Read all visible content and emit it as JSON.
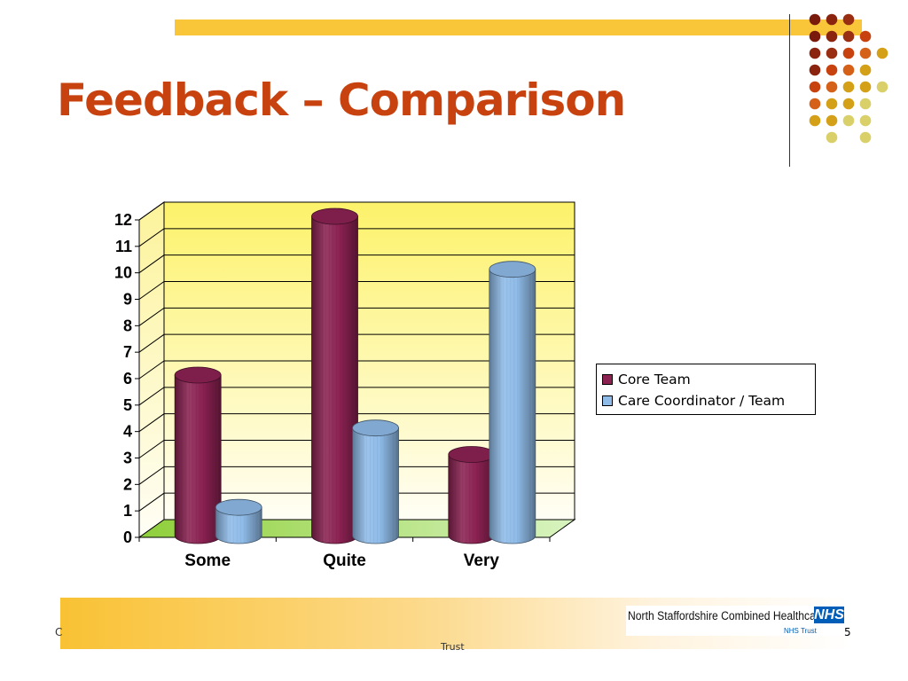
{
  "slide": {
    "title": "Feedback – Comparison",
    "page_number": "5",
    "footer_left": "C",
    "footer_center": "Trust"
  },
  "logo": {
    "organisation": "North Staffordshire Combined Healthcare",
    "mark": "NHS",
    "trust": "NHS Trust"
  },
  "colors": {
    "title": "#c8420f",
    "bar": "#f9c63a",
    "series": [
      "#8b2252",
      "#8fbbe8"
    ],
    "wall_top": "#fdf26a",
    "wall_bottom": "#fffef5",
    "floor": "#a6d86a",
    "nhs_blue": "#005eb8"
  },
  "decoration": {
    "dot_grid": [
      [
        "#7a1a0c",
        "#8a240f",
        "#9a2e12",
        null,
        null
      ],
      [
        "#7a1a0c",
        "#8a240f",
        "#9a2e12",
        "#c8420f",
        null
      ],
      [
        "#8a240f",
        "#9a2e12",
        "#c8420f",
        "#d56018",
        "#d4a017"
      ],
      [
        "#8a240f",
        "#c8420f",
        "#d56018",
        "#d4a017",
        null
      ],
      [
        "#c8420f",
        "#d56018",
        "#d4a017",
        "#d4a017",
        "#d9d06a"
      ],
      [
        "#d56018",
        "#d4a017",
        "#d4a017",
        "#d9d06a",
        null
      ],
      [
        "#d4a017",
        "#d4a017",
        "#d9d06a",
        "#d9d06a",
        null
      ],
      [
        null,
        "#d9d06a",
        null,
        "#d9d06a",
        null
      ]
    ]
  },
  "chart_data": {
    "type": "bar",
    "style": "3d-cylinder",
    "categories": [
      "Some",
      "Quite",
      "Very"
    ],
    "series": [
      {
        "name": "Core Team",
        "values": [
          6,
          12,
          3
        ]
      },
      {
        "name": "Care Coordinator / Team",
        "values": [
          1,
          4,
          10
        ]
      }
    ],
    "yticks": [
      "0",
      "1",
      "2",
      "3",
      "4",
      "5",
      "6",
      "7",
      "8",
      "9",
      "10",
      "11",
      "12"
    ],
    "ylim": [
      0,
      12
    ],
    "grid": true,
    "legend_position": "right"
  }
}
